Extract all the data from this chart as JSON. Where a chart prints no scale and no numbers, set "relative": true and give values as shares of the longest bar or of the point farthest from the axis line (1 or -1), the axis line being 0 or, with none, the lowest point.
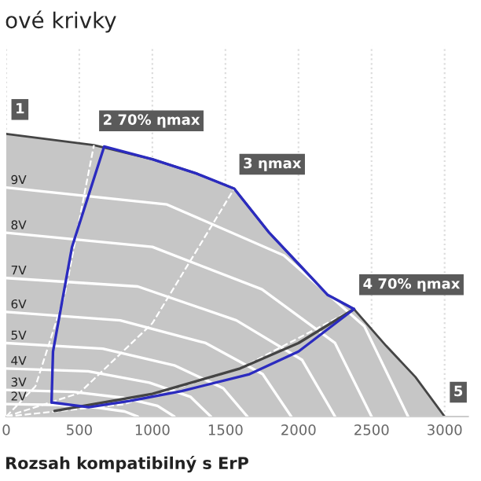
{
  "chart_data": {
    "type": "line",
    "title": "ové krivky",
    "relative": true,
    "xlim": [
      0,
      3160
    ],
    "xticks": [
      0,
      500,
      1000,
      1500,
      2000,
      2500,
      3000
    ],
    "grid": "x",
    "tick_labels": "x",
    "series": [
      {
        "type": "area",
        "color": "#c6c6c6",
        "x": [
          0,
          600,
          1000,
          1300,
          1560,
          1800,
          2000,
          2200,
          2380,
          2600,
          2800,
          3000
        ],
        "values": [
          1.0,
          0.96,
          0.91,
          0.86,
          0.806,
          0.65,
          0.54,
          0.43,
          0.38,
          0.25,
          0.14,
          0
        ]
      },
      {
        "name": "9V",
        "color": "#ffffff",
        "x": [
          0,
          1100,
          1900,
          2450,
          2750
        ],
        "values": [
          0.81,
          0.75,
          0.57,
          0.32,
          0
        ]
      },
      {
        "name": "8V",
        "color": "#ffffff",
        "x": [
          0,
          1000,
          1750,
          2250,
          2500
        ],
        "values": [
          0.65,
          0.6,
          0.45,
          0.26,
          0
        ]
      },
      {
        "name": "7V",
        "color": "#ffffff",
        "x": [
          0,
          900,
          1575,
          2025,
          2250
        ],
        "values": [
          0.49,
          0.46,
          0.34,
          0.2,
          0
        ]
      },
      {
        "name": "6V",
        "color": "#ffffff",
        "x": [
          0,
          780,
          1365,
          1755,
          1950
        ],
        "values": [
          0.37,
          0.34,
          0.26,
          0.15,
          0
        ]
      },
      {
        "name": "5V",
        "color": "#ffffff",
        "x": [
          0,
          660,
          1155,
          1485,
          1650
        ],
        "values": [
          0.26,
          0.24,
          0.18,
          0.1,
          0
        ]
      },
      {
        "name": "4V",
        "color": "#ffffff",
        "x": [
          0,
          560,
          980,
          1260,
          1400
        ],
        "values": [
          0.17,
          0.16,
          0.12,
          0.07,
          0
        ]
      },
      {
        "name": "3V",
        "color": "#ffffff",
        "x": [
          0,
          460,
          805,
          1035,
          1150
        ],
        "values": [
          0.094,
          0.087,
          0.066,
          0.038,
          0
        ]
      },
      {
        "name": "2V",
        "color": "#ffffff",
        "x": [
          0,
          360,
          630,
          810,
          900
        ],
        "values": [
          0.044,
          0.041,
          0.031,
          0.018,
          0
        ]
      },
      {
        "color": "#ffffff",
        "line_style": "dashed",
        "x": [
          0,
          200,
          400,
          600
        ],
        "values": [
          0,
          0.107,
          0.43,
          0.96
        ]
      },
      {
        "color": "#ffffff",
        "line_style": "dashed",
        "x": [
          0,
          500,
          1000,
          1560
        ],
        "values": [
          0,
          0.083,
          0.33,
          0.806
        ]
      },
      {
        "color": "#ffffff",
        "line_style": "dashed",
        "x": [
          0,
          800,
          1600,
          2380
        ],
        "values": [
          0,
          0.043,
          0.17,
          0.38
        ]
      },
      {
        "color": "#444444",
        "x": [
          330,
          1000,
          1600,
          2000,
          2380
        ],
        "values": [
          0.02,
          0.08,
          0.17,
          0.26,
          0.38
        ]
      },
      {
        "color": "#2b2bbf",
        "x": [
          310,
          320,
          450,
          670,
          1000,
          1300,
          1560,
          1800,
          2000,
          2200,
          2380
        ],
        "values": [
          0.05,
          0.23,
          0.6,
          0.955,
          0.91,
          0.86,
          0.806,
          0.65,
          0.54,
          0.43,
          0.38
        ]
      },
      {
        "color": "#2b2bbf",
        "x": [
          310,
          565,
          845,
          1200,
          1665,
          2000,
          2380
        ],
        "values": [
          0.05,
          0.033,
          0.055,
          0.09,
          0.15,
          0.23,
          0.38
        ]
      }
    ],
    "annotations": [
      {
        "text": "1",
        "x": 0,
        "y": 1.0
      },
      {
        "text": "2 70% ηmax",
        "x": 600,
        "y": 0.96
      },
      {
        "text": "3 ηmax",
        "x": 1560,
        "y": 0.806
      },
      {
        "text": "4 70% ηmax",
        "x": 2380,
        "y": 0.38
      },
      {
        "text": "5",
        "x": 3000,
        "y": 0
      },
      "Rozsah kompatibilný s ErP"
    ]
  }
}
